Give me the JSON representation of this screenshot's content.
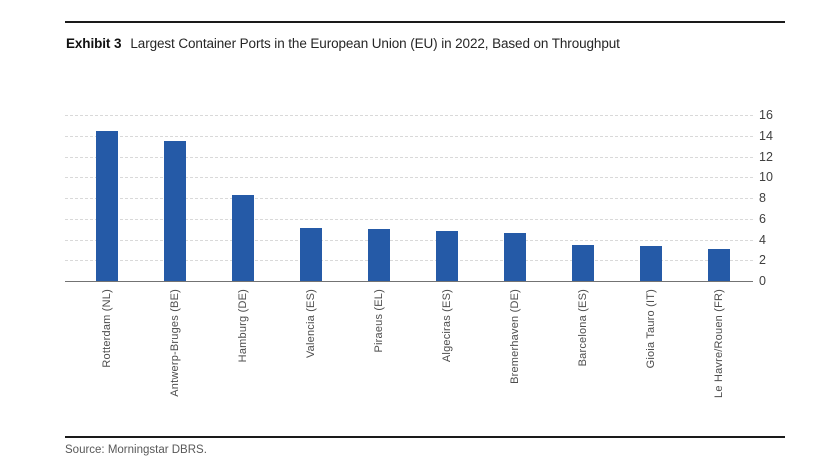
{
  "header": {
    "exhibit_label": "Exhibit 3",
    "title": "Largest Container Ports in the European Union (EU) in 2022, Based on Throughput"
  },
  "chart_data": {
    "type": "bar",
    "title": "Largest Container Ports in the European Union (EU) in 2022, Based on Throughput",
    "categories": [
      "Rotterdam (NL)",
      "Antwerp-Bruges (BE)",
      "Hamburg (DE)",
      "Valencia (ES)",
      "Piraeus (EL)",
      "Algeciras (ES)",
      "Bremerhaven (DE)",
      "Barcelona (ES)",
      "Gioia Tauro (IT)",
      "Le Havre/Rouen (FR)"
    ],
    "values": [
      14.5,
      13.5,
      8.3,
      5.1,
      5.0,
      4.8,
      4.6,
      3.5,
      3.4,
      3.1
    ],
    "xlabel": "",
    "ylabel": "",
    "ylim": [
      0,
      16
    ],
    "yticks": [
      0,
      2,
      4,
      6,
      8,
      10,
      12,
      14,
      16
    ],
    "ytick_side": "right",
    "grid": true,
    "grid_style": "horizontal-dashed",
    "legend": "none",
    "x_label_rotation": 90,
    "bar_color": "#255AA7"
  },
  "footer": {
    "source": "Source: Morningstar DBRS."
  },
  "colors": {
    "bar": "#255AA7",
    "gridline": "#d9d9d9",
    "axis_line": "#737373",
    "rule": "#1a1a1a",
    "tick_text": "#404040",
    "source_text": "#595959"
  }
}
